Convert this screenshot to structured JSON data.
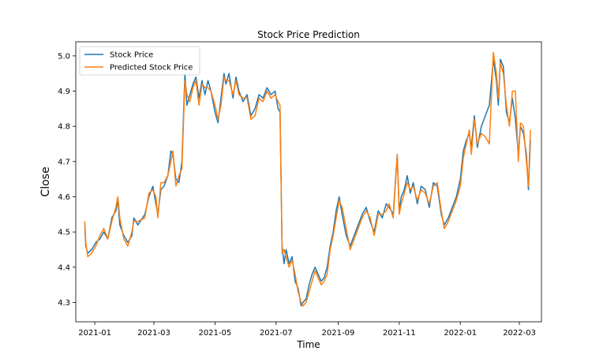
{
  "chart_data": {
    "type": "line",
    "title": "Stock Price Prediction",
    "xlabel": "Time",
    "ylabel": "Close",
    "ylim": [
      4.245,
      5.04
    ],
    "xlim": [
      "2020-12-13",
      "2022-03-23"
    ],
    "legend_position": "top-left",
    "x_ticks": [
      "2021-01",
      "2021-03",
      "2021-05",
      "2021-07",
      "2021-09",
      "2021-11",
      "2022-01",
      "2022-03"
    ],
    "y_ticks": [
      "4.3",
      "4.4",
      "4.5",
      "4.6",
      "4.7",
      "4.8",
      "4.9",
      "5.0"
    ],
    "series": [
      {
        "name": "Stock Price",
        "color": "#1f77b4",
        "points": [
          [
            "2020-12-22",
            4.52
          ],
          [
            "2020-12-23",
            4.46
          ],
          [
            "2020-12-25",
            4.44
          ],
          [
            "2020-12-29",
            4.45
          ],
          [
            "2021-01-02",
            4.47
          ],
          [
            "2021-01-06",
            4.48
          ],
          [
            "2021-01-10",
            4.5
          ],
          [
            "2021-01-14",
            4.48
          ],
          [
            "2021-01-18",
            4.54
          ],
          [
            "2021-01-22",
            4.56
          ],
          [
            "2021-01-24",
            4.59
          ],
          [
            "2021-01-26",
            4.52
          ],
          [
            "2021-01-30",
            4.49
          ],
          [
            "2021-02-03",
            4.47
          ],
          [
            "2021-02-07",
            4.49
          ],
          [
            "2021-02-09",
            4.54
          ],
          [
            "2021-02-13",
            4.52
          ],
          [
            "2021-02-20",
            4.55
          ],
          [
            "2021-02-24",
            4.6
          ],
          [
            "2021-02-28",
            4.63
          ],
          [
            "2021-03-03",
            4.58
          ],
          [
            "2021-03-05",
            4.55
          ],
          [
            "2021-03-08",
            4.62
          ],
          [
            "2021-03-11",
            4.63
          ],
          [
            "2021-03-15",
            4.66
          ],
          [
            "2021-03-18",
            4.73
          ],
          [
            "2021-03-20",
            4.72
          ],
          [
            "2021-03-23",
            4.65
          ],
          [
            "2021-03-26",
            4.64
          ],
          [
            "2021-03-29",
            4.7
          ],
          [
            "2021-04-01",
            4.95
          ],
          [
            "2021-04-03",
            4.86
          ],
          [
            "2021-04-06",
            4.89
          ],
          [
            "2021-04-09",
            4.92
          ],
          [
            "2021-04-12",
            4.94
          ],
          [
            "2021-04-15",
            4.88
          ],
          [
            "2021-04-18",
            4.93
          ],
          [
            "2021-04-21",
            4.89
          ],
          [
            "2021-04-24",
            4.93
          ],
          [
            "2021-04-27",
            4.9
          ],
          [
            "2021-05-01",
            4.84
          ],
          [
            "2021-05-04",
            4.81
          ],
          [
            "2021-05-07",
            4.88
          ],
          [
            "2021-05-10",
            4.95
          ],
          [
            "2021-05-12",
            4.92
          ],
          [
            "2021-05-15",
            4.95
          ],
          [
            "2021-05-19",
            4.88
          ],
          [
            "2021-05-22",
            4.94
          ],
          [
            "2021-05-25",
            4.9
          ],
          [
            "2021-05-29",
            4.87
          ],
          [
            "2021-06-02",
            4.89
          ],
          [
            "2021-06-06",
            4.83
          ],
          [
            "2021-06-10",
            4.85
          ],
          [
            "2021-06-14",
            4.89
          ],
          [
            "2021-06-18",
            4.88
          ],
          [
            "2021-06-22",
            4.91
          ],
          [
            "2021-06-26",
            4.89
          ],
          [
            "2021-06-30",
            4.9
          ],
          [
            "2021-07-03",
            4.85
          ],
          [
            "2021-07-05",
            4.84
          ],
          [
            "2021-07-07",
            4.46
          ],
          [
            "2021-07-09",
            4.41
          ],
          [
            "2021-07-11",
            4.45
          ],
          [
            "2021-07-14",
            4.41
          ],
          [
            "2021-07-17",
            4.43
          ],
          [
            "2021-07-20",
            4.36
          ],
          [
            "2021-07-23",
            4.34
          ],
          [
            "2021-07-26",
            4.29
          ],
          [
            "2021-07-28",
            4.3
          ],
          [
            "2021-07-31",
            4.31
          ],
          [
            "2021-08-03",
            4.35
          ],
          [
            "2021-08-06",
            4.38
          ],
          [
            "2021-08-09",
            4.4
          ],
          [
            "2021-08-12",
            4.38
          ],
          [
            "2021-08-15",
            4.36
          ],
          [
            "2021-08-18",
            4.37
          ],
          [
            "2021-08-21",
            4.4
          ],
          [
            "2021-08-24",
            4.46
          ],
          [
            "2021-08-27",
            4.5
          ],
          [
            "2021-08-30",
            4.56
          ],
          [
            "2021-09-02",
            4.6
          ],
          [
            "2021-09-05",
            4.55
          ],
          [
            "2021-09-09",
            4.49
          ],
          [
            "2021-09-13",
            4.46
          ],
          [
            "2021-09-17",
            4.49
          ],
          [
            "2021-09-21",
            4.52
          ],
          [
            "2021-09-25",
            4.55
          ],
          [
            "2021-09-29",
            4.57
          ],
          [
            "2021-10-03",
            4.53
          ],
          [
            "2021-10-07",
            4.5
          ],
          [
            "2021-10-11",
            4.56
          ],
          [
            "2021-10-15",
            4.54
          ],
          [
            "2021-10-19",
            4.58
          ],
          [
            "2021-10-22",
            4.57
          ],
          [
            "2021-10-26",
            4.55
          ],
          [
            "2021-10-30",
            4.72
          ],
          [
            "2021-11-01",
            4.56
          ],
          [
            "2021-11-03",
            4.6
          ],
          [
            "2021-11-06",
            4.62
          ],
          [
            "2021-11-09",
            4.66
          ],
          [
            "2021-11-12",
            4.61
          ],
          [
            "2021-11-15",
            4.64
          ],
          [
            "2021-11-19",
            4.58
          ],
          [
            "2021-11-23",
            4.63
          ],
          [
            "2021-11-27",
            4.62
          ],
          [
            "2021-12-01",
            4.57
          ],
          [
            "2021-12-05",
            4.64
          ],
          [
            "2021-12-09",
            4.63
          ],
          [
            "2021-12-13",
            4.55
          ],
          [
            "2021-12-16",
            4.52
          ],
          [
            "2021-12-20",
            4.54
          ],
          [
            "2021-12-24",
            4.57
          ],
          [
            "2021-12-28",
            4.6
          ],
          [
            "2022-01-01",
            4.65
          ],
          [
            "2022-01-04",
            4.73
          ],
          [
            "2022-01-07",
            4.76
          ],
          [
            "2022-01-10",
            4.78
          ],
          [
            "2022-01-12",
            4.74
          ],
          [
            "2022-01-15",
            4.83
          ],
          [
            "2022-01-18",
            4.74
          ],
          [
            "2022-01-22",
            4.8
          ],
          [
            "2022-01-26",
            4.83
          ],
          [
            "2022-01-30",
            4.86
          ],
          [
            "2022-02-03",
            4.99
          ],
          [
            "2022-02-06",
            4.93
          ],
          [
            "2022-02-08",
            4.86
          ],
          [
            "2022-02-10",
            4.99
          ],
          [
            "2022-02-13",
            4.97
          ],
          [
            "2022-02-16",
            4.84
          ],
          [
            "2022-02-19",
            4.81
          ],
          [
            "2022-02-22",
            4.88
          ],
          [
            "2022-02-25",
            4.82
          ],
          [
            "2022-02-28",
            4.72
          ],
          [
            "2022-03-02",
            4.8
          ],
          [
            "2022-03-05",
            4.78
          ],
          [
            "2022-03-08",
            4.72
          ],
          [
            "2022-03-10",
            4.62
          ],
          [
            "2022-03-12",
            4.76
          ]
        ]
      },
      {
        "name": "Predicted Stock Price",
        "color": "#ff7f0e",
        "points": [
          [
            "2020-12-22",
            4.53
          ],
          [
            "2020-12-23",
            4.47
          ],
          [
            "2020-12-25",
            4.43
          ],
          [
            "2020-12-29",
            4.44
          ],
          [
            "2021-01-02",
            4.46
          ],
          [
            "2021-01-06",
            4.49
          ],
          [
            "2021-01-10",
            4.51
          ],
          [
            "2021-01-14",
            4.48
          ],
          [
            "2021-01-18",
            4.53
          ],
          [
            "2021-01-22",
            4.57
          ],
          [
            "2021-01-24",
            4.6
          ],
          [
            "2021-01-26",
            4.54
          ],
          [
            "2021-01-30",
            4.48
          ],
          [
            "2021-02-03",
            4.46
          ],
          [
            "2021-02-07",
            4.5
          ],
          [
            "2021-02-09",
            4.53
          ],
          [
            "2021-02-13",
            4.53
          ],
          [
            "2021-02-20",
            4.54
          ],
          [
            "2021-02-24",
            4.61
          ],
          [
            "2021-02-28",
            4.62
          ],
          [
            "2021-03-03",
            4.6
          ],
          [
            "2021-03-05",
            4.54
          ],
          [
            "2021-03-08",
            4.64
          ],
          [
            "2021-03-11",
            4.64
          ],
          [
            "2021-03-15",
            4.66
          ],
          [
            "2021-03-18",
            4.7
          ],
          [
            "2021-03-20",
            4.73
          ],
          [
            "2021-03-23",
            4.63
          ],
          [
            "2021-03-26",
            4.66
          ],
          [
            "2021-03-29",
            4.68
          ],
          [
            "2021-04-01",
            4.93
          ],
          [
            "2021-04-03",
            4.89
          ],
          [
            "2021-04-06",
            4.87
          ],
          [
            "2021-04-09",
            4.91
          ],
          [
            "2021-04-12",
            4.93
          ],
          [
            "2021-04-15",
            4.86
          ],
          [
            "2021-04-18",
            4.92
          ],
          [
            "2021-04-21",
            4.91
          ],
          [
            "2021-04-24",
            4.91
          ],
          [
            "2021-04-27",
            4.9
          ],
          [
            "2021-05-01",
            4.86
          ],
          [
            "2021-05-04",
            4.82
          ],
          [
            "2021-05-07",
            4.86
          ],
          [
            "2021-05-10",
            4.94
          ],
          [
            "2021-05-12",
            4.93
          ],
          [
            "2021-05-15",
            4.93
          ],
          [
            "2021-05-19",
            4.89
          ],
          [
            "2021-05-22",
            4.93
          ],
          [
            "2021-05-25",
            4.89
          ],
          [
            "2021-05-29",
            4.88
          ],
          [
            "2021-06-02",
            4.88
          ],
          [
            "2021-06-06",
            4.82
          ],
          [
            "2021-06-10",
            4.83
          ],
          [
            "2021-06-14",
            4.88
          ],
          [
            "2021-06-18",
            4.87
          ],
          [
            "2021-06-22",
            4.9
          ],
          [
            "2021-06-26",
            4.88
          ],
          [
            "2021-06-30",
            4.89
          ],
          [
            "2021-07-03",
            4.87
          ],
          [
            "2021-07-05",
            4.86
          ],
          [
            "2021-07-07",
            4.44
          ],
          [
            "2021-07-09",
            4.45
          ],
          [
            "2021-07-11",
            4.43
          ],
          [
            "2021-07-14",
            4.4
          ],
          [
            "2021-07-17",
            4.42
          ],
          [
            "2021-07-20",
            4.38
          ],
          [
            "2021-07-23",
            4.33
          ],
          [
            "2021-07-26",
            4.3
          ],
          [
            "2021-07-28",
            4.29
          ],
          [
            "2021-07-31",
            4.3
          ],
          [
            "2021-08-03",
            4.33
          ],
          [
            "2021-08-06",
            4.36
          ],
          [
            "2021-08-09",
            4.39
          ],
          [
            "2021-08-12",
            4.37
          ],
          [
            "2021-08-15",
            4.35
          ],
          [
            "2021-08-18",
            4.36
          ],
          [
            "2021-08-21",
            4.38
          ],
          [
            "2021-08-24",
            4.45
          ],
          [
            "2021-08-27",
            4.49
          ],
          [
            "2021-08-30",
            4.54
          ],
          [
            "2021-09-02",
            4.59
          ],
          [
            "2021-09-05",
            4.57
          ],
          [
            "2021-09-09",
            4.51
          ],
          [
            "2021-09-13",
            4.45
          ],
          [
            "2021-09-17",
            4.48
          ],
          [
            "2021-09-21",
            4.51
          ],
          [
            "2021-09-25",
            4.54
          ],
          [
            "2021-09-29",
            4.56
          ],
          [
            "2021-10-03",
            4.54
          ],
          [
            "2021-10-07",
            4.49
          ],
          [
            "2021-10-11",
            4.55
          ],
          [
            "2021-10-15",
            4.55
          ],
          [
            "2021-10-19",
            4.56
          ],
          [
            "2021-10-22",
            4.58
          ],
          [
            "2021-10-26",
            4.54
          ],
          [
            "2021-10-30",
            4.72
          ],
          [
            "2021-11-01",
            4.55
          ],
          [
            "2021-11-03",
            4.58
          ],
          [
            "2021-11-06",
            4.61
          ],
          [
            "2021-11-09",
            4.64
          ],
          [
            "2021-11-12",
            4.62
          ],
          [
            "2021-11-15",
            4.63
          ],
          [
            "2021-11-19",
            4.59
          ],
          [
            "2021-11-23",
            4.62
          ],
          [
            "2021-11-27",
            4.61
          ],
          [
            "2021-12-01",
            4.58
          ],
          [
            "2021-12-05",
            4.63
          ],
          [
            "2021-12-09",
            4.64
          ],
          [
            "2021-12-13",
            4.56
          ],
          [
            "2021-12-16",
            4.51
          ],
          [
            "2021-12-20",
            4.53
          ],
          [
            "2021-12-24",
            4.56
          ],
          [
            "2021-12-28",
            4.59
          ],
          [
            "2022-01-01",
            4.63
          ],
          [
            "2022-01-04",
            4.71
          ],
          [
            "2022-01-07",
            4.75
          ],
          [
            "2022-01-10",
            4.79
          ],
          [
            "2022-01-12",
            4.72
          ],
          [
            "2022-01-15",
            4.82
          ],
          [
            "2022-01-18",
            4.75
          ],
          [
            "2022-01-22",
            4.78
          ],
          [
            "2022-01-26",
            4.77
          ],
          [
            "2022-01-30",
            4.75
          ],
          [
            "2022-02-03",
            5.01
          ],
          [
            "2022-02-06",
            4.95
          ],
          [
            "2022-02-08",
            4.88
          ],
          [
            "2022-02-10",
            4.98
          ],
          [
            "2022-02-13",
            4.95
          ],
          [
            "2022-02-16",
            4.86
          ],
          [
            "2022-02-19",
            4.8
          ],
          [
            "2022-02-22",
            4.9
          ],
          [
            "2022-02-25",
            4.9
          ],
          [
            "2022-02-28",
            4.7
          ],
          [
            "2022-03-02",
            4.81
          ],
          [
            "2022-03-05",
            4.8
          ],
          [
            "2022-03-08",
            4.7
          ],
          [
            "2022-03-10",
            4.63
          ],
          [
            "2022-03-12",
            4.79
          ]
        ]
      }
    ]
  }
}
